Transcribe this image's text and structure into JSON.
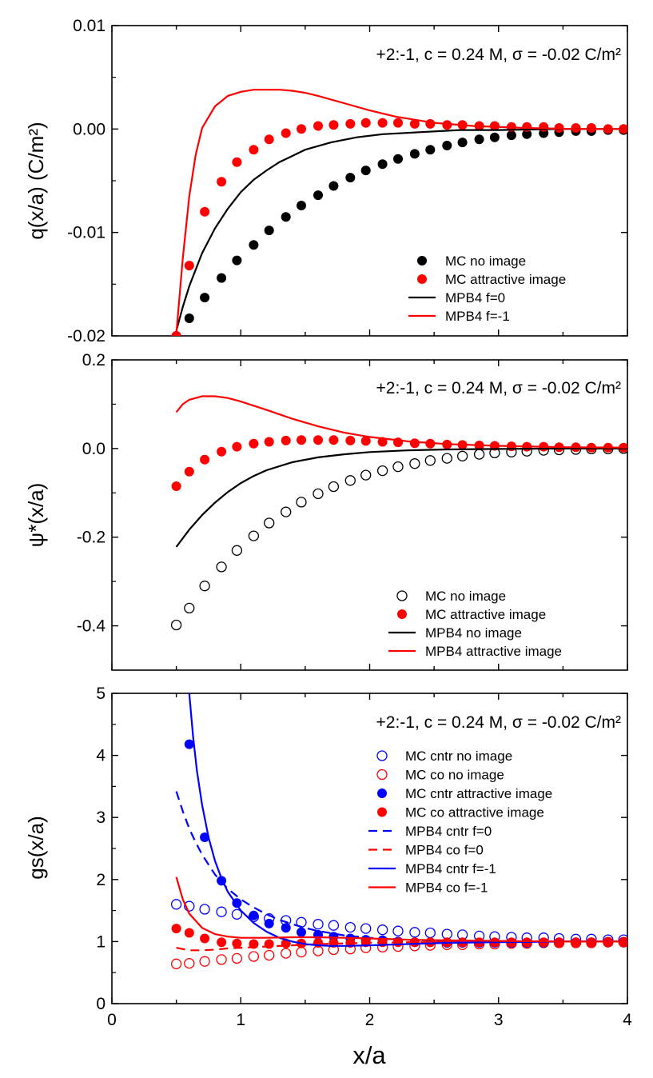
{
  "chart_data": [
    {
      "type": "line",
      "ylabel": "q(x/a) (C/m²)",
      "xlim": [
        0,
        4
      ],
      "ylim": [
        -0.02,
        0.01
      ],
      "yticks": [
        -0.02,
        -0.01,
        0.0,
        0.01
      ],
      "ytick_labels": [
        "-0.02",
        "-0.01",
        "0.00",
        "0.01"
      ],
      "annotation": "+2:-1, c = 0.24 M, σ = -0.02 C/m²",
      "legend_position": "bottom-right",
      "series": [
        {
          "name": "MC no image",
          "kind": "points",
          "marker": "filled",
          "color": "#000000",
          "x": [
            0.5,
            0.6,
            0.72,
            0.85,
            0.97,
            1.1,
            1.22,
            1.35,
            1.47,
            1.6,
            1.72,
            1.85,
            1.97,
            2.1,
            2.22,
            2.35,
            2.47,
            2.6,
            2.72,
            2.85,
            2.97,
            3.1,
            3.22,
            3.35,
            3.47,
            3.6,
            3.72,
            3.85,
            3.97
          ],
          "y": [
            -0.02,
            -0.0183,
            -0.0163,
            -0.0144,
            -0.0127,
            -0.0112,
            -0.0098,
            -0.0085,
            -0.0074,
            -0.0064,
            -0.0055,
            -0.0047,
            -0.004,
            -0.0034,
            -0.0029,
            -0.0024,
            -0.002,
            -0.0016,
            -0.0013,
            -0.001,
            -0.0008,
            -0.0006,
            -0.0005,
            -0.0004,
            -0.0003,
            -0.0002,
            -0.0002,
            -0.0001,
            -0.0001
          ]
        },
        {
          "name": "MC attractive image",
          "kind": "points",
          "marker": "filled",
          "color": "#ff0000",
          "x": [
            0.5,
            0.6,
            0.72,
            0.85,
            0.97,
            1.1,
            1.22,
            1.35,
            1.47,
            1.6,
            1.72,
            1.85,
            1.97,
            2.1,
            2.22,
            2.35,
            2.47,
            2.6,
            2.72,
            2.85,
            2.97,
            3.1,
            3.22,
            3.35,
            3.47,
            3.6,
            3.72,
            3.85,
            3.97
          ],
          "y": [
            -0.02,
            -0.0132,
            -0.008,
            -0.0051,
            -0.0032,
            -0.002,
            -0.001,
            -0.0004,
            0.0,
            0.0003,
            0.0004,
            0.0005,
            0.0006,
            0.0006,
            0.0006,
            0.0005,
            0.0005,
            0.0004,
            0.0004,
            0.0003,
            0.0003,
            0.0002,
            0.0002,
            0.0002,
            0.0001,
            0.0001,
            0.0001,
            0.0,
            0.0
          ]
        },
        {
          "name": "MPB4 f=0",
          "kind": "line",
          "dash": "solid",
          "color": "#000000",
          "x": [
            0.5,
            0.55,
            0.6,
            0.7,
            0.8,
            0.9,
            1.0,
            1.1,
            1.2,
            1.3,
            1.4,
            1.5,
            1.7,
            1.9,
            2.1,
            2.4,
            2.7,
            3.0,
            3.5,
            4.0
          ],
          "y": [
            -0.0195,
            -0.0172,
            -0.0152,
            -0.012,
            -0.0096,
            -0.0077,
            -0.0061,
            -0.0049,
            -0.004,
            -0.0032,
            -0.0026,
            -0.002,
            -0.0013,
            -0.0008,
            -0.0005,
            -0.0003,
            -0.0001,
            -0.0001,
            0.0,
            0.0
          ]
        },
        {
          "name": "MPB4 f=-1",
          "kind": "line",
          "dash": "solid",
          "color": "#ff0000",
          "x": [
            0.5,
            0.55,
            0.6,
            0.65,
            0.7,
            0.8,
            0.9,
            1.0,
            1.1,
            1.2,
            1.3,
            1.4,
            1.5,
            1.6,
            1.8,
            2.0,
            2.2,
            2.5,
            2.8,
            3.2,
            3.6,
            4.0
          ],
          "y": [
            -0.0198,
            -0.0125,
            -0.0065,
            -0.0025,
            0.0001,
            0.0022,
            0.0032,
            0.0036,
            0.0038,
            0.0038,
            0.0038,
            0.0037,
            0.0035,
            0.0032,
            0.0025,
            0.0018,
            0.0012,
            0.0006,
            0.0003,
            0.0001,
            0.0,
            0.0
          ]
        }
      ]
    },
    {
      "type": "line",
      "ylabel": "ψ*(x/a)",
      "xlim": [
        0,
        4
      ],
      "ylim": [
        -0.5,
        0.2
      ],
      "yticks": [
        -0.4,
        -0.2,
        0.0,
        0.2
      ],
      "ytick_labels": [
        "-0.4",
        "-0.2",
        "0.0",
        "0.2"
      ],
      "annotation": "+2:-1, c = 0.24 M, σ = -0.02 C/m²",
      "legend_position": "bottom-right",
      "series": [
        {
          "name": "MC no image",
          "kind": "points",
          "marker": "open",
          "color": "#000000",
          "x": [
            0.5,
            0.6,
            0.72,
            0.85,
            0.97,
            1.1,
            1.22,
            1.35,
            1.47,
            1.6,
            1.72,
            1.85,
            1.97,
            2.1,
            2.22,
            2.35,
            2.47,
            2.6,
            2.72,
            2.85,
            2.97,
            3.1,
            3.22,
            3.35,
            3.47,
            3.6,
            3.72,
            3.85,
            3.97
          ],
          "y": [
            -0.398,
            -0.36,
            -0.31,
            -0.267,
            -0.23,
            -0.197,
            -0.168,
            -0.143,
            -0.121,
            -0.102,
            -0.086,
            -0.072,
            -0.06,
            -0.05,
            -0.041,
            -0.034,
            -0.027,
            -0.022,
            -0.017,
            -0.013,
            -0.01,
            -0.008,
            -0.006,
            -0.004,
            -0.003,
            -0.002,
            -0.001,
            -0.001,
            0.0
          ]
        },
        {
          "name": "MC attractive image",
          "kind": "points",
          "marker": "filled",
          "color": "#ff0000",
          "x": [
            0.5,
            0.6,
            0.72,
            0.85,
            0.97,
            1.1,
            1.22,
            1.35,
            1.47,
            1.6,
            1.72,
            1.85,
            1.97,
            2.1,
            2.22,
            2.35,
            2.47,
            2.6,
            2.72,
            2.85,
            2.97,
            3.1,
            3.22,
            3.35,
            3.47,
            3.6,
            3.72,
            3.85,
            3.97
          ],
          "y": [
            -0.085,
            -0.052,
            -0.025,
            -0.007,
            0.004,
            0.011,
            0.015,
            0.018,
            0.019,
            0.019,
            0.019,
            0.018,
            0.017,
            0.015,
            0.014,
            0.012,
            0.011,
            0.009,
            0.008,
            0.007,
            0.006,
            0.005,
            0.004,
            0.004,
            0.003,
            0.003,
            0.002,
            0.002,
            0.002
          ]
        },
        {
          "name": "MPB4 no image",
          "kind": "line",
          "dash": "solid",
          "color": "#000000",
          "x": [
            0.5,
            0.6,
            0.7,
            0.8,
            0.9,
            1.0,
            1.1,
            1.2,
            1.4,
            1.6,
            1.8,
            2.0,
            2.3,
            2.6,
            3.0,
            3.5,
            4.0
          ],
          "y": [
            -0.222,
            -0.183,
            -0.15,
            -0.122,
            -0.098,
            -0.078,
            -0.062,
            -0.049,
            -0.031,
            -0.02,
            -0.013,
            -0.008,
            -0.004,
            -0.002,
            -0.001,
            0.0,
            0.0
          ]
        },
        {
          "name": "MPB4 attractive image",
          "kind": "line",
          "dash": "solid",
          "color": "#ff0000",
          "x": [
            0.5,
            0.55,
            0.6,
            0.7,
            0.8,
            0.9,
            1.0,
            1.2,
            1.4,
            1.6,
            1.8,
            2.0,
            2.3,
            2.6,
            3.0,
            3.5,
            4.0
          ],
          "y": [
            0.082,
            0.1,
            0.11,
            0.118,
            0.118,
            0.114,
            0.106,
            0.087,
            0.067,
            0.05,
            0.036,
            0.026,
            0.016,
            0.01,
            0.006,
            0.003,
            0.002
          ]
        }
      ]
    },
    {
      "type": "line",
      "ylabel": "gs(x/a)",
      "xlabel": "x/a",
      "xlim": [
        0,
        4
      ],
      "ylim": [
        0,
        5
      ],
      "yticks": [
        0,
        1,
        2,
        3,
        4,
        5
      ],
      "ytick_labels": [
        "0",
        "1",
        "2",
        "3",
        "4",
        "5"
      ],
      "xticks": [
        0,
        1,
        2,
        3,
        4
      ],
      "xtick_labels": [
        "0",
        "1",
        "2",
        "3",
        "4"
      ],
      "annotation": "+2:-1, c = 0.24 M, σ = -0.02 C/m²",
      "legend_position": "right",
      "series": [
        {
          "name": "MC cntr no image",
          "kind": "points",
          "marker": "open",
          "color": "#0000ff",
          "x": [
            0.5,
            0.6,
            0.72,
            0.85,
            0.97,
            1.1,
            1.22,
            1.35,
            1.47,
            1.6,
            1.72,
            1.85,
            1.97,
            2.1,
            2.22,
            2.35,
            2.47,
            2.6,
            2.72,
            2.85,
            2.97,
            3.1,
            3.22,
            3.35,
            3.47,
            3.6,
            3.72,
            3.85,
            3.97
          ],
          "y": [
            1.6,
            1.57,
            1.52,
            1.48,
            1.44,
            1.4,
            1.37,
            1.34,
            1.31,
            1.28,
            1.26,
            1.23,
            1.21,
            1.19,
            1.17,
            1.15,
            1.14,
            1.12,
            1.11,
            1.09,
            1.08,
            1.07,
            1.06,
            1.06,
            1.05,
            1.04,
            1.04,
            1.03,
            1.03
          ]
        },
        {
          "name": "MC co no image",
          "kind": "points",
          "marker": "open",
          "color": "#ff0000",
          "x": [
            0.5,
            0.6,
            0.72,
            0.85,
            0.97,
            1.1,
            1.22,
            1.35,
            1.47,
            1.6,
            1.72,
            1.85,
            1.97,
            2.1,
            2.22,
            2.35,
            2.47,
            2.6,
            2.72,
            2.85,
            2.97,
            3.1,
            3.22,
            3.35,
            3.47,
            3.6,
            3.72,
            3.85,
            3.97
          ],
          "y": [
            0.64,
            0.65,
            0.68,
            0.71,
            0.73,
            0.76,
            0.78,
            0.81,
            0.83,
            0.85,
            0.87,
            0.88,
            0.9,
            0.91,
            0.92,
            0.93,
            0.94,
            0.95,
            0.95,
            0.96,
            0.96,
            0.97,
            0.97,
            0.98,
            0.98,
            0.98,
            0.98,
            0.99,
            0.99
          ]
        },
        {
          "name": "MC cntr attractive image",
          "kind": "points",
          "marker": "filled",
          "color": "#0000ff",
          "x": [
            0.6,
            0.72,
            0.85,
            0.97,
            1.1,
            1.22,
            1.35,
            1.47,
            1.6,
            1.72,
            1.85,
            1.97,
            2.1,
            2.22,
            2.35,
            2.47,
            2.6,
            2.72,
            2.85,
            2.97,
            3.1,
            3.22,
            3.35,
            3.47,
            3.6,
            3.72,
            3.85,
            3.97
          ],
          "y": [
            4.18,
            2.68,
            1.98,
            1.62,
            1.42,
            1.29,
            1.22,
            1.15,
            1.11,
            1.08,
            1.05,
            1.03,
            1.02,
            1.0,
            0.99,
            0.99,
            0.98,
            0.98,
            0.98,
            0.98,
            0.98,
            0.98,
            0.98,
            0.99,
            0.99,
            0.99,
            0.99,
            0.99
          ]
        },
        {
          "name": "MC co attractive image",
          "kind": "points",
          "marker": "filled",
          "color": "#ff0000",
          "x": [
            0.5,
            0.6,
            0.72,
            0.85,
            0.97,
            1.1,
            1.22,
            1.35,
            1.47,
            1.6,
            1.72,
            1.85,
            1.97,
            2.1,
            2.22,
            2.35,
            2.47,
            2.6,
            2.72,
            2.85,
            2.97,
            3.1,
            3.22,
            3.35,
            3.47,
            3.6,
            3.72,
            3.85,
            3.97
          ],
          "y": [
            1.21,
            1.14,
            1.05,
            0.99,
            0.97,
            0.96,
            0.96,
            0.97,
            0.97,
            0.98,
            0.98,
            0.98,
            0.99,
            0.99,
            0.99,
            0.99,
            0.99,
            0.99,
            0.99,
            0.99,
            0.99,
            0.99,
            0.99,
            0.99,
            0.99,
            0.99,
            0.99,
            0.99,
            0.99
          ]
        },
        {
          "name": "MPB4 cntr f=0",
          "kind": "line",
          "dash": "dashed",
          "color": "#0000ff",
          "x": [
            0.5,
            0.55,
            0.6,
            0.65,
            0.7,
            0.8,
            0.9,
            1.0,
            1.1,
            1.2,
            1.3,
            1.4,
            1.5,
            1.6,
            1.8,
            2.0,
            2.3,
            2.6,
            3.0,
            3.5,
            4.0
          ],
          "y": [
            3.42,
            3.1,
            2.82,
            2.6,
            2.4,
            2.08,
            1.85,
            1.68,
            1.55,
            1.44,
            1.35,
            1.28,
            1.22,
            1.17,
            1.1,
            1.06,
            1.03,
            1.01,
            1.0,
            1.0,
            1.0
          ]
        },
        {
          "name": "MPB4 co f=0",
          "kind": "line",
          "dash": "dashed",
          "color": "#ff0000",
          "x": [
            0.5,
            0.6,
            0.7,
            0.8,
            0.9,
            1.0,
            1.2,
            1.4,
            1.6,
            1.8,
            2.0,
            2.3,
            2.6,
            3.0,
            3.5,
            4.0
          ],
          "y": [
            0.9,
            0.86,
            0.86,
            0.87,
            0.89,
            0.9,
            0.92,
            0.94,
            0.96,
            0.97,
            0.98,
            0.99,
            0.99,
            1.0,
            1.0,
            1.0
          ]
        },
        {
          "name": "MPB4 cntr f=-1",
          "kind": "line",
          "dash": "solid",
          "color": "#0000ff",
          "x": [
            0.6,
            0.63,
            0.66,
            0.7,
            0.75,
            0.8,
            0.85,
            0.9,
            1.0,
            1.1,
            1.2,
            1.3,
            1.4,
            1.5,
            1.6,
            1.7,
            1.8,
            2.0,
            2.3,
            2.6,
            3.0,
            3.5,
            4.0
          ],
          "y": [
            5.0,
            4.3,
            3.75,
            3.2,
            2.68,
            2.3,
            2.02,
            1.8,
            1.5,
            1.3,
            1.16,
            1.06,
            1.0,
            0.96,
            0.94,
            0.93,
            0.93,
            0.94,
            0.96,
            0.98,
            0.99,
            1.0,
            1.0
          ]
        },
        {
          "name": "MPB4 co f=-1",
          "kind": "line",
          "dash": "solid",
          "color": "#ff0000",
          "x": [
            0.5,
            0.55,
            0.6,
            0.7,
            0.8,
            0.9,
            1.0,
            1.2,
            1.4,
            1.6,
            1.8,
            2.0,
            2.3,
            2.6,
            3.0,
            3.5,
            4.0
          ],
          "y": [
            2.04,
            1.68,
            1.45,
            1.22,
            1.12,
            1.08,
            1.06,
            1.06,
            1.07,
            1.07,
            1.06,
            1.05,
            1.03,
            1.02,
            1.01,
            1.0,
            1.0
          ]
        }
      ]
    }
  ]
}
